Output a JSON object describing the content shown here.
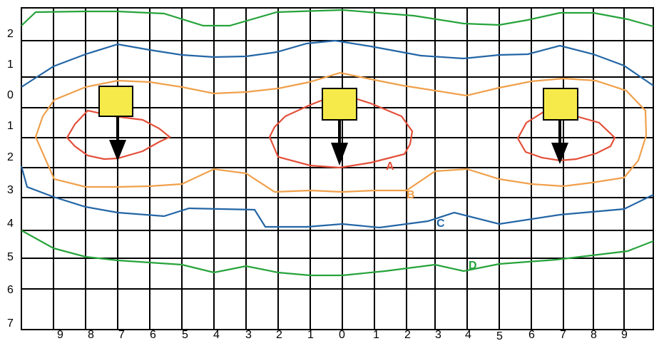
{
  "figure": {
    "row_labels": [
      "2",
      "1",
      "0",
      "1",
      "2",
      "3",
      "4",
      "5",
      "6",
      "7"
    ],
    "column_labels": [
      "9",
      "8",
      "7",
      "6",
      "5",
      "4",
      "3",
      "2",
      "1",
      "0",
      "1",
      "2",
      "3",
      "4",
      "5",
      "6",
      "7",
      "8",
      "9"
    ],
    "curves": [
      {
        "id": "A",
        "label": "A",
        "color": "#e3503a"
      },
      {
        "id": "B",
        "label": "B",
        "color": "#f0a04b"
      },
      {
        "id": "C",
        "label": "C",
        "color": "#2466a6"
      },
      {
        "id": "D",
        "label": "D",
        "color": "#27a33b"
      }
    ],
    "colors": {
      "grid": "#000000",
      "marker_fill": "#f5ea4a",
      "marker_stroke": "#000000",
      "arrow": "#000000"
    },
    "marker_icons": [
      "square-marker",
      "down-arrow-icon"
    ]
  }
}
